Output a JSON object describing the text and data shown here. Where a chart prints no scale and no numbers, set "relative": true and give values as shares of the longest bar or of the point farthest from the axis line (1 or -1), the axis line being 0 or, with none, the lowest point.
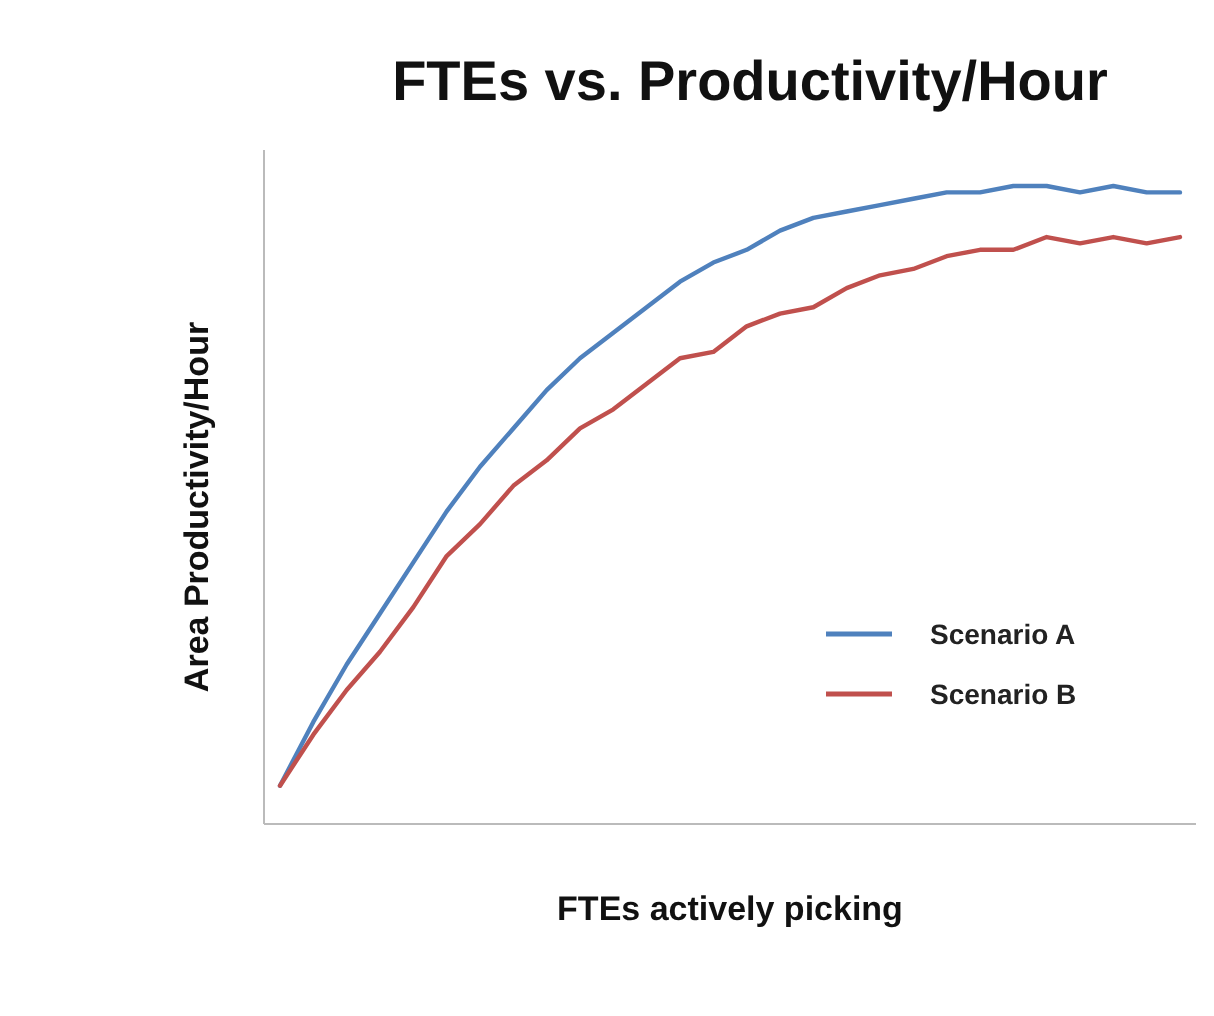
{
  "chart_data": {
    "type": "line",
    "title": "FTEs vs. Productivity/Hour",
    "xlabel": "FTEs actively picking",
    "ylabel": "Area Productivity/Hour",
    "relative": true,
    "legend": "bottom right",
    "marker": "none",
    "categories": [
      null,
      null,
      null,
      null,
      null,
      null,
      null,
      null,
      null,
      null,
      null,
      null,
      null,
      null,
      null,
      null,
      null,
      null,
      null,
      null,
      null,
      null,
      null,
      null,
      null,
      null,
      null,
      null
    ],
    "series": [
      {
        "name": "Scenario A",
        "color": "#4f81bd",
        "values": [
          0.06,
          0.16,
          0.25,
          0.33,
          0.41,
          0.49,
          0.56,
          0.62,
          0.68,
          0.73,
          0.77,
          0.81,
          0.85,
          0.88,
          0.9,
          0.93,
          0.95,
          0.96,
          0.97,
          0.98,
          0.99,
          0.99,
          1,
          1,
          0.99,
          1,
          0.99,
          0.99
        ]
      },
      {
        "name": "Scenario B",
        "color": "#c0504d",
        "values": [
          0.06,
          0.14,
          0.21,
          0.27,
          0.34,
          0.42,
          0.47,
          0.53,
          0.57,
          0.62,
          0.65,
          0.69,
          0.73,
          0.74,
          0.78,
          0.8,
          0.81,
          0.84,
          0.86,
          0.87,
          0.89,
          0.9,
          0.9,
          0.92,
          0.91,
          0.92,
          0.91,
          0.92
        ]
      }
    ]
  }
}
